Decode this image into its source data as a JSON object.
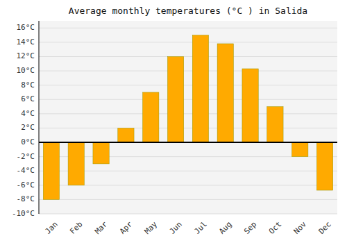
{
  "chart_data": {
    "type": "bar",
    "title": "Average monthly temperatures (°C ) in Salida",
    "categories": [
      "Jan",
      "Feb",
      "Mar",
      "Apr",
      "May",
      "Jun",
      "Jul",
      "Aug",
      "Sep",
      "Oct",
      "Nov",
      "Dec"
    ],
    "values": [
      -8.0,
      -6.0,
      -3.0,
      2.0,
      7.0,
      12.0,
      15.0,
      13.8,
      10.3,
      5.0,
      -2.0,
      -6.7
    ],
    "color": "#FFAA00",
    "ylim": [
      -10,
      17
    ],
    "yticks": [
      {
        "value": -10,
        "label": "-10°C"
      },
      {
        "value": -8,
        "label": "-8°C"
      },
      {
        "value": -6,
        "label": "-6°C"
      },
      {
        "value": -4,
        "label": "-4°C"
      },
      {
        "value": -2,
        "label": "-2°C"
      },
      {
        "value": 0,
        "label": "0°C"
      },
      {
        "value": 2,
        "label": "2°C"
      },
      {
        "value": 4,
        "label": "4°C"
      },
      {
        "value": 6,
        "label": "6°C"
      },
      {
        "value": 8,
        "label": "8°C"
      },
      {
        "value": 10,
        "label": "10°C"
      },
      {
        "value": 12,
        "label": "12°C"
      },
      {
        "value": 14,
        "label": "14°C"
      },
      {
        "value": 16,
        "label": "16°C"
      }
    ],
    "grid": true
  }
}
